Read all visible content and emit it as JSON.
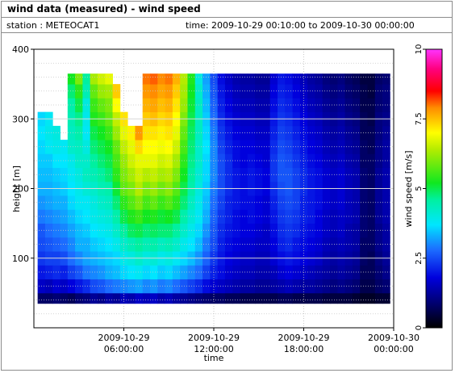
{
  "title": "wind data (measured) - wind speed",
  "station_line": "station : METEOCAT1",
  "time_line": "time: 2009-10-29 00:10:00 to 2009-10-30 00:00:00",
  "chart_data": {
    "type": "heatmap",
    "xlabel": "time",
    "ylabel": "height [m]",
    "colorbar_label": "wind speed [m/s]",
    "xlim_hours": [
      0,
      24
    ],
    "ylim": [
      0,
      400
    ],
    "x_ticks": [
      {
        "hour": 6,
        "line1": "2009-10-29",
        "line2": "06:00:00"
      },
      {
        "hour": 12,
        "line1": "2009-10-29",
        "line2": "12:00:00"
      },
      {
        "hour": 18,
        "line1": "2009-10-29",
        "line2": "18:00:00"
      },
      {
        "hour": 24,
        "line1": "2009-10-30",
        "line2": "00:00:00"
      }
    ],
    "y_ticks": [
      100,
      200,
      300,
      400
    ],
    "y_gridlines": [
      20,
      40,
      60,
      80,
      100,
      120,
      140,
      160,
      180,
      200,
      220,
      240,
      260,
      280,
      300,
      320,
      340,
      360,
      380,
      400
    ],
    "colorbar_range": [
      0,
      10
    ],
    "colorbar_ticks": [
      "0",
      "2.5",
      "5",
      "7.5",
      "10"
    ],
    "height_bins_m": [
      40,
      60,
      80,
      100,
      120,
      140,
      160,
      180,
      200,
      220,
      240,
      260,
      280,
      300,
      320,
      340,
      360
    ],
    "data_top_m": 365,
    "profiles": [
      {
        "hour": 0.5,
        "speeds": [
          0.8,
          1.6,
          2.0,
          2.3,
          2.5,
          2.6,
          2.9,
          3.1,
          3.3,
          3.4,
          3.5,
          3.6,
          3.7,
          3.6
        ]
      },
      {
        "hour": 1.0,
        "speeds": [
          0.8,
          1.5,
          2.1,
          2.4,
          2.6,
          2.8,
          3.0,
          3.2,
          3.3,
          3.4,
          3.5,
          3.8,
          3.9,
          3.8
        ]
      },
      {
        "hour": 1.5,
        "speeds": [
          0.9,
          1.7,
          2.2,
          2.4,
          2.7,
          2.9,
          3.1,
          3.3,
          3.4,
          3.5,
          3.7,
          3.9,
          4.0
        ]
      },
      {
        "hour": 2.0,
        "speeds": [
          0.8,
          1.6,
          2.1,
          2.5,
          2.8,
          3.0,
          3.2,
          3.3,
          3.5,
          3.6,
          3.7,
          3.8
        ]
      },
      {
        "hour": 2.5,
        "speeds": [
          0.7,
          1.8,
          2.4,
          2.8,
          3.0,
          3.2,
          3.4,
          3.6,
          3.7,
          3.8,
          3.9,
          4.2,
          4.3,
          4.4,
          4.5,
          4.8,
          5.2
        ]
      },
      {
        "hour": 3.0,
        "speeds": [
          0.9,
          2.0,
          2.6,
          3.0,
          3.3,
          3.4,
          3.6,
          3.8,
          3.9,
          4.0,
          4.2,
          4.3,
          4.5,
          4.7,
          5.0,
          5.4,
          6.0
        ]
      },
      {
        "hour": 3.5,
        "speeds": [
          1.0,
          2.2,
          2.9,
          3.2,
          3.3,
          3.5,
          3.7,
          3.8,
          4.1,
          4.3,
          4.2,
          4.0,
          3.8,
          3.9,
          4.0,
          4.4,
          4.6
        ]
      },
      {
        "hour": 4.0,
        "speeds": [
          1.2,
          2.5,
          3.0,
          3.3,
          3.5,
          3.7,
          3.9,
          4.0,
          4.2,
          4.4,
          4.6,
          4.8,
          5.0,
          5.3,
          5.5,
          5.8,
          6.3
        ]
      },
      {
        "hour": 4.5,
        "speeds": [
          1.1,
          2.6,
          3.1,
          3.4,
          3.6,
          3.8,
          4.0,
          4.2,
          4.4,
          4.6,
          4.8,
          5.0,
          5.2,
          5.5,
          5.8,
          6.2,
          6.6
        ]
      },
      {
        "hour": 5.0,
        "speeds": [
          1.3,
          2.8,
          3.3,
          3.5,
          3.7,
          3.9,
          4.1,
          4.3,
          4.5,
          4.8,
          5.0,
          5.2,
          5.5,
          5.8,
          6.0,
          6.3,
          6.8
        ]
      },
      {
        "hour": 5.5,
        "speeds": [
          1.2,
          2.9,
          3.4,
          3.6,
          3.9,
          4.2,
          4.5,
          4.8,
          5.1,
          5.4,
          5.6,
          5.8,
          6.2,
          6.5,
          7.0,
          7.4
        ]
      },
      {
        "hour": 6.0,
        "speeds": [
          1.5,
          3.0,
          3.6,
          3.9,
          4.2,
          4.6,
          5.0,
          5.4,
          5.8,
          6.0,
          6.2,
          6.5,
          6.8,
          7.2
        ]
      },
      {
        "hour": 6.5,
        "speeds": [
          1.4,
          3.1,
          3.7,
          4.0,
          4.4,
          4.9,
          5.3,
          5.7,
          6.0,
          6.3,
          6.6,
          6.8,
          7.1
        ]
      },
      {
        "hour": 7.0,
        "speeds": [
          1.6,
          3.2,
          3.8,
          4.2,
          4.6,
          5.0,
          5.5,
          6.0,
          6.4,
          6.6,
          6.8,
          7.3,
          7.8
        ]
      },
      {
        "hour": 7.5,
        "speeds": [
          1.5,
          3.0,
          3.6,
          4.0,
          4.4,
          4.8,
          5.2,
          5.6,
          6.0,
          6.4,
          6.8,
          7.0,
          7.2,
          7.4,
          7.6,
          7.8,
          8.0
        ]
      },
      {
        "hour": 8.0,
        "speeds": [
          1.6,
          3.1,
          3.7,
          4.1,
          4.5,
          4.9,
          5.3,
          5.8,
          6.2,
          6.5,
          6.8,
          7.0,
          7.2,
          7.5,
          7.7,
          7.9,
          8.1
        ]
      },
      {
        "hour": 8.5,
        "speeds": [
          1.4,
          2.9,
          3.5,
          3.9,
          4.3,
          4.8,
          5.1,
          5.5,
          5.9,
          6.3,
          6.6,
          6.9,
          7.1,
          7.3,
          7.5,
          7.7,
          7.9
        ]
      },
      {
        "hour": 9.0,
        "speeds": [
          1.5,
          3.0,
          3.6,
          4.0,
          4.4,
          4.8,
          5.2,
          5.7,
          6.1,
          6.4,
          6.7,
          7.0,
          7.2,
          7.4,
          7.6,
          7.8,
          8.0
        ]
      },
      {
        "hour": 9.5,
        "speeds": [
          1.3,
          2.8,
          3.4,
          3.8,
          4.2,
          4.6,
          5.0,
          5.4,
          5.7,
          6.0,
          6.3,
          6.6,
          6.8,
          7.0,
          7.2,
          7.4,
          7.6
        ]
      },
      {
        "hour": 10.0,
        "speeds": [
          1.2,
          2.6,
          3.2,
          3.6,
          3.9,
          4.2,
          4.5,
          4.8,
          5.0,
          5.2,
          5.4,
          5.6,
          5.8,
          6.0,
          6.2,
          6.3,
          6.4
        ]
      },
      {
        "hour": 10.5,
        "speeds": [
          1.1,
          2.4,
          3.0,
          3.4,
          3.7,
          3.9,
          4.1,
          4.3,
          4.5,
          4.6,
          4.7,
          4.8,
          4.9,
          5.0,
          5.1,
          5.2,
          5.3
        ]
      },
      {
        "hour": 11.0,
        "speeds": [
          1.0,
          2.2,
          2.8,
          3.1,
          3.4,
          3.6,
          3.8,
          3.9,
          4.0,
          4.1,
          4.2,
          4.2,
          4.3,
          4.3,
          4.3,
          4.2,
          4.0
        ]
      },
      {
        "hour": 11.5,
        "speeds": [
          0.9,
          1.9,
          2.4,
          2.7,
          2.9,
          3.1,
          3.3,
          3.4,
          3.5,
          3.6,
          3.6,
          3.7,
          3.6,
          3.5,
          3.4,
          3.3,
          3.2
        ]
      },
      {
        "hour": 12.0,
        "speeds": [
          0.8,
          1.7,
          2.1,
          2.3,
          2.5,
          2.6,
          2.7,
          2.8,
          2.9,
          3.0,
          3.0,
          3.0,
          2.9,
          2.8,
          2.7,
          2.6,
          2.5
        ]
      },
      {
        "hour": 12.5,
        "speeds": [
          0.8,
          1.6,
          1.9,
          2.0,
          2.1,
          2.2,
          2.3,
          2.4,
          2.5,
          2.5,
          2.5,
          2.4,
          2.3,
          2.2,
          2.1,
          2.0,
          1.9
        ]
      },
      {
        "hour": 13.0,
        "speeds": [
          0.7,
          1.5,
          1.7,
          1.8,
          1.9,
          2.0,
          2.1,
          2.1,
          2.2,
          2.2,
          2.2,
          2.1,
          2.0,
          1.9,
          1.8,
          1.7,
          1.6
        ]
      },
      {
        "hour": 13.5,
        "speeds": [
          0.7,
          1.4,
          1.6,
          1.7,
          1.8,
          1.9,
          1.9,
          2.0,
          2.0,
          2.0,
          1.9,
          1.9,
          1.8,
          1.7,
          1.6,
          1.5,
          1.4
        ]
      },
      {
        "hour": 14.0,
        "speeds": [
          0.6,
          1.3,
          1.5,
          1.6,
          1.7,
          1.8,
          1.8,
          1.9,
          1.9,
          1.9,
          1.8,
          1.8,
          1.7,
          1.6,
          1.5,
          1.4,
          1.3
        ]
      },
      {
        "hour": 14.5,
        "speeds": [
          0.6,
          1.3,
          1.5,
          1.6,
          1.7,
          1.8,
          1.9,
          1.9,
          2.0,
          2.0,
          1.9,
          1.8,
          1.7,
          1.6,
          1.5,
          1.4,
          1.3
        ]
      },
      {
        "hour": 15.0,
        "speeds": [
          0.6,
          1.2,
          1.4,
          1.5,
          1.6,
          1.7,
          1.8,
          1.8,
          1.9,
          1.9,
          1.8,
          1.7,
          1.6,
          1.5,
          1.4,
          1.3,
          1.2
        ]
      },
      {
        "hour": 15.5,
        "speeds": [
          0.6,
          1.2,
          1.4,
          1.5,
          1.6,
          1.6,
          1.7,
          1.7,
          1.8,
          1.8,
          1.7,
          1.7,
          1.6,
          1.5,
          1.4,
          1.3,
          1.2
        ]
      },
      {
        "hour": 16.0,
        "speeds": [
          0.6,
          1.3,
          1.5,
          1.7,
          1.8,
          1.9,
          2.0,
          2.1,
          2.2,
          2.3,
          2.3,
          2.2,
          2.1,
          2.0,
          1.9,
          1.8,
          1.7
        ]
      },
      {
        "hour": 16.5,
        "speeds": [
          0.7,
          1.4,
          1.7,
          1.9,
          2.1,
          2.2,
          2.3,
          2.4,
          2.5,
          2.6,
          2.6,
          2.5,
          2.4,
          2.3,
          2.2,
          2.1,
          2.0
        ]
      },
      {
        "hour": 17.0,
        "speeds": [
          0.7,
          1.5,
          1.8,
          2.0,
          2.2,
          2.3,
          2.4,
          2.5,
          2.6,
          2.6,
          2.5,
          2.4,
          2.3,
          2.2,
          2.1,
          2.0,
          1.9
        ]
      },
      {
        "hour": 17.5,
        "speeds": [
          0.6,
          1.4,
          1.7,
          1.9,
          2.0,
          2.2,
          2.3,
          2.4,
          2.4,
          2.4,
          2.3,
          2.2,
          2.1,
          2.0,
          1.9,
          1.8,
          1.7
        ]
      },
      {
        "hour": 18.0,
        "speeds": [
          0.6,
          1.3,
          1.6,
          1.8,
          1.9,
          2.0,
          2.1,
          2.1,
          2.2,
          2.2,
          2.1,
          2.0,
          1.9,
          1.8,
          1.7,
          1.6,
          1.5
        ]
      },
      {
        "hour": 18.5,
        "speeds": [
          0.6,
          1.3,
          1.5,
          1.7,
          1.8,
          1.9,
          2.0,
          2.0,
          2.0,
          2.0,
          1.9,
          1.8,
          1.7,
          1.6,
          1.5,
          1.4,
          1.3
        ]
      },
      {
        "hour": 19.0,
        "speeds": [
          0.6,
          1.2,
          1.4,
          1.6,
          1.7,
          1.8,
          1.8,
          1.9,
          1.9,
          1.9,
          1.8,
          1.7,
          1.6,
          1.5,
          1.4,
          1.3,
          1.2
        ]
      },
      {
        "hour": 19.5,
        "speeds": [
          0.5,
          1.1,
          1.3,
          1.4,
          1.5,
          1.6,
          1.6,
          1.7,
          1.7,
          1.7,
          1.6,
          1.5,
          1.4,
          1.3,
          1.2,
          1.1,
          1.0
        ]
      },
      {
        "hour": 20.0,
        "speeds": [
          0.5,
          1.0,
          1.2,
          1.3,
          1.4,
          1.5,
          1.5,
          1.6,
          1.6,
          1.6,
          1.5,
          1.4,
          1.3,
          1.2,
          1.1,
          1.0,
          0.9
        ]
      },
      {
        "hour": 20.5,
        "speeds": [
          0.5,
          1.1,
          1.3,
          1.4,
          1.5,
          1.6,
          1.6,
          1.7,
          1.7,
          1.7,
          1.6,
          1.5,
          1.4,
          1.3,
          1.2,
          1.1,
          1.0
        ]
      },
      {
        "hour": 21.0,
        "speeds": [
          0.5,
          1.0,
          1.2,
          1.3,
          1.4,
          1.4,
          1.5,
          1.5,
          1.5,
          1.5,
          1.4,
          1.3,
          1.2,
          1.1,
          1.0,
          0.9,
          0.8
        ]
      },
      {
        "hour": 21.5,
        "speeds": [
          0.4,
          0.9,
          1.1,
          1.2,
          1.3,
          1.3,
          1.4,
          1.4,
          1.4,
          1.4,
          1.3,
          1.2,
          1.1,
          1.0,
          0.9,
          0.8,
          0.7
        ]
      },
      {
        "hour": 22.0,
        "speeds": [
          0.3,
          0.6,
          0.7,
          0.8,
          0.8,
          0.9,
          0.9,
          0.9,
          0.9,
          0.9,
          0.8,
          0.8,
          0.7,
          0.7,
          0.6,
          0.6,
          0.5
        ]
      },
      {
        "hour": 22.5,
        "speeds": [
          0.3,
          0.6,
          0.7,
          0.7,
          0.8,
          0.8,
          0.8,
          0.8,
          0.8,
          0.8,
          0.8,
          0.7,
          0.7,
          0.6,
          0.6,
          0.5,
          0.5
        ]
      },
      {
        "hour": 23.0,
        "speeds": [
          0.4,
          0.8,
          0.9,
          1.0,
          1.1,
          1.1,
          1.2,
          1.2,
          1.2,
          1.2,
          1.1,
          1.1,
          1.0,
          1.0,
          0.9,
          0.9,
          0.8
        ]
      },
      {
        "hour": 23.5,
        "speeds": [
          0.4,
          0.9,
          1.1,
          1.2,
          1.3,
          1.3,
          1.4,
          1.4,
          1.4,
          1.4,
          1.3,
          1.3,
          1.2,
          1.1,
          1.0,
          1.0,
          0.9
        ]
      }
    ]
  }
}
